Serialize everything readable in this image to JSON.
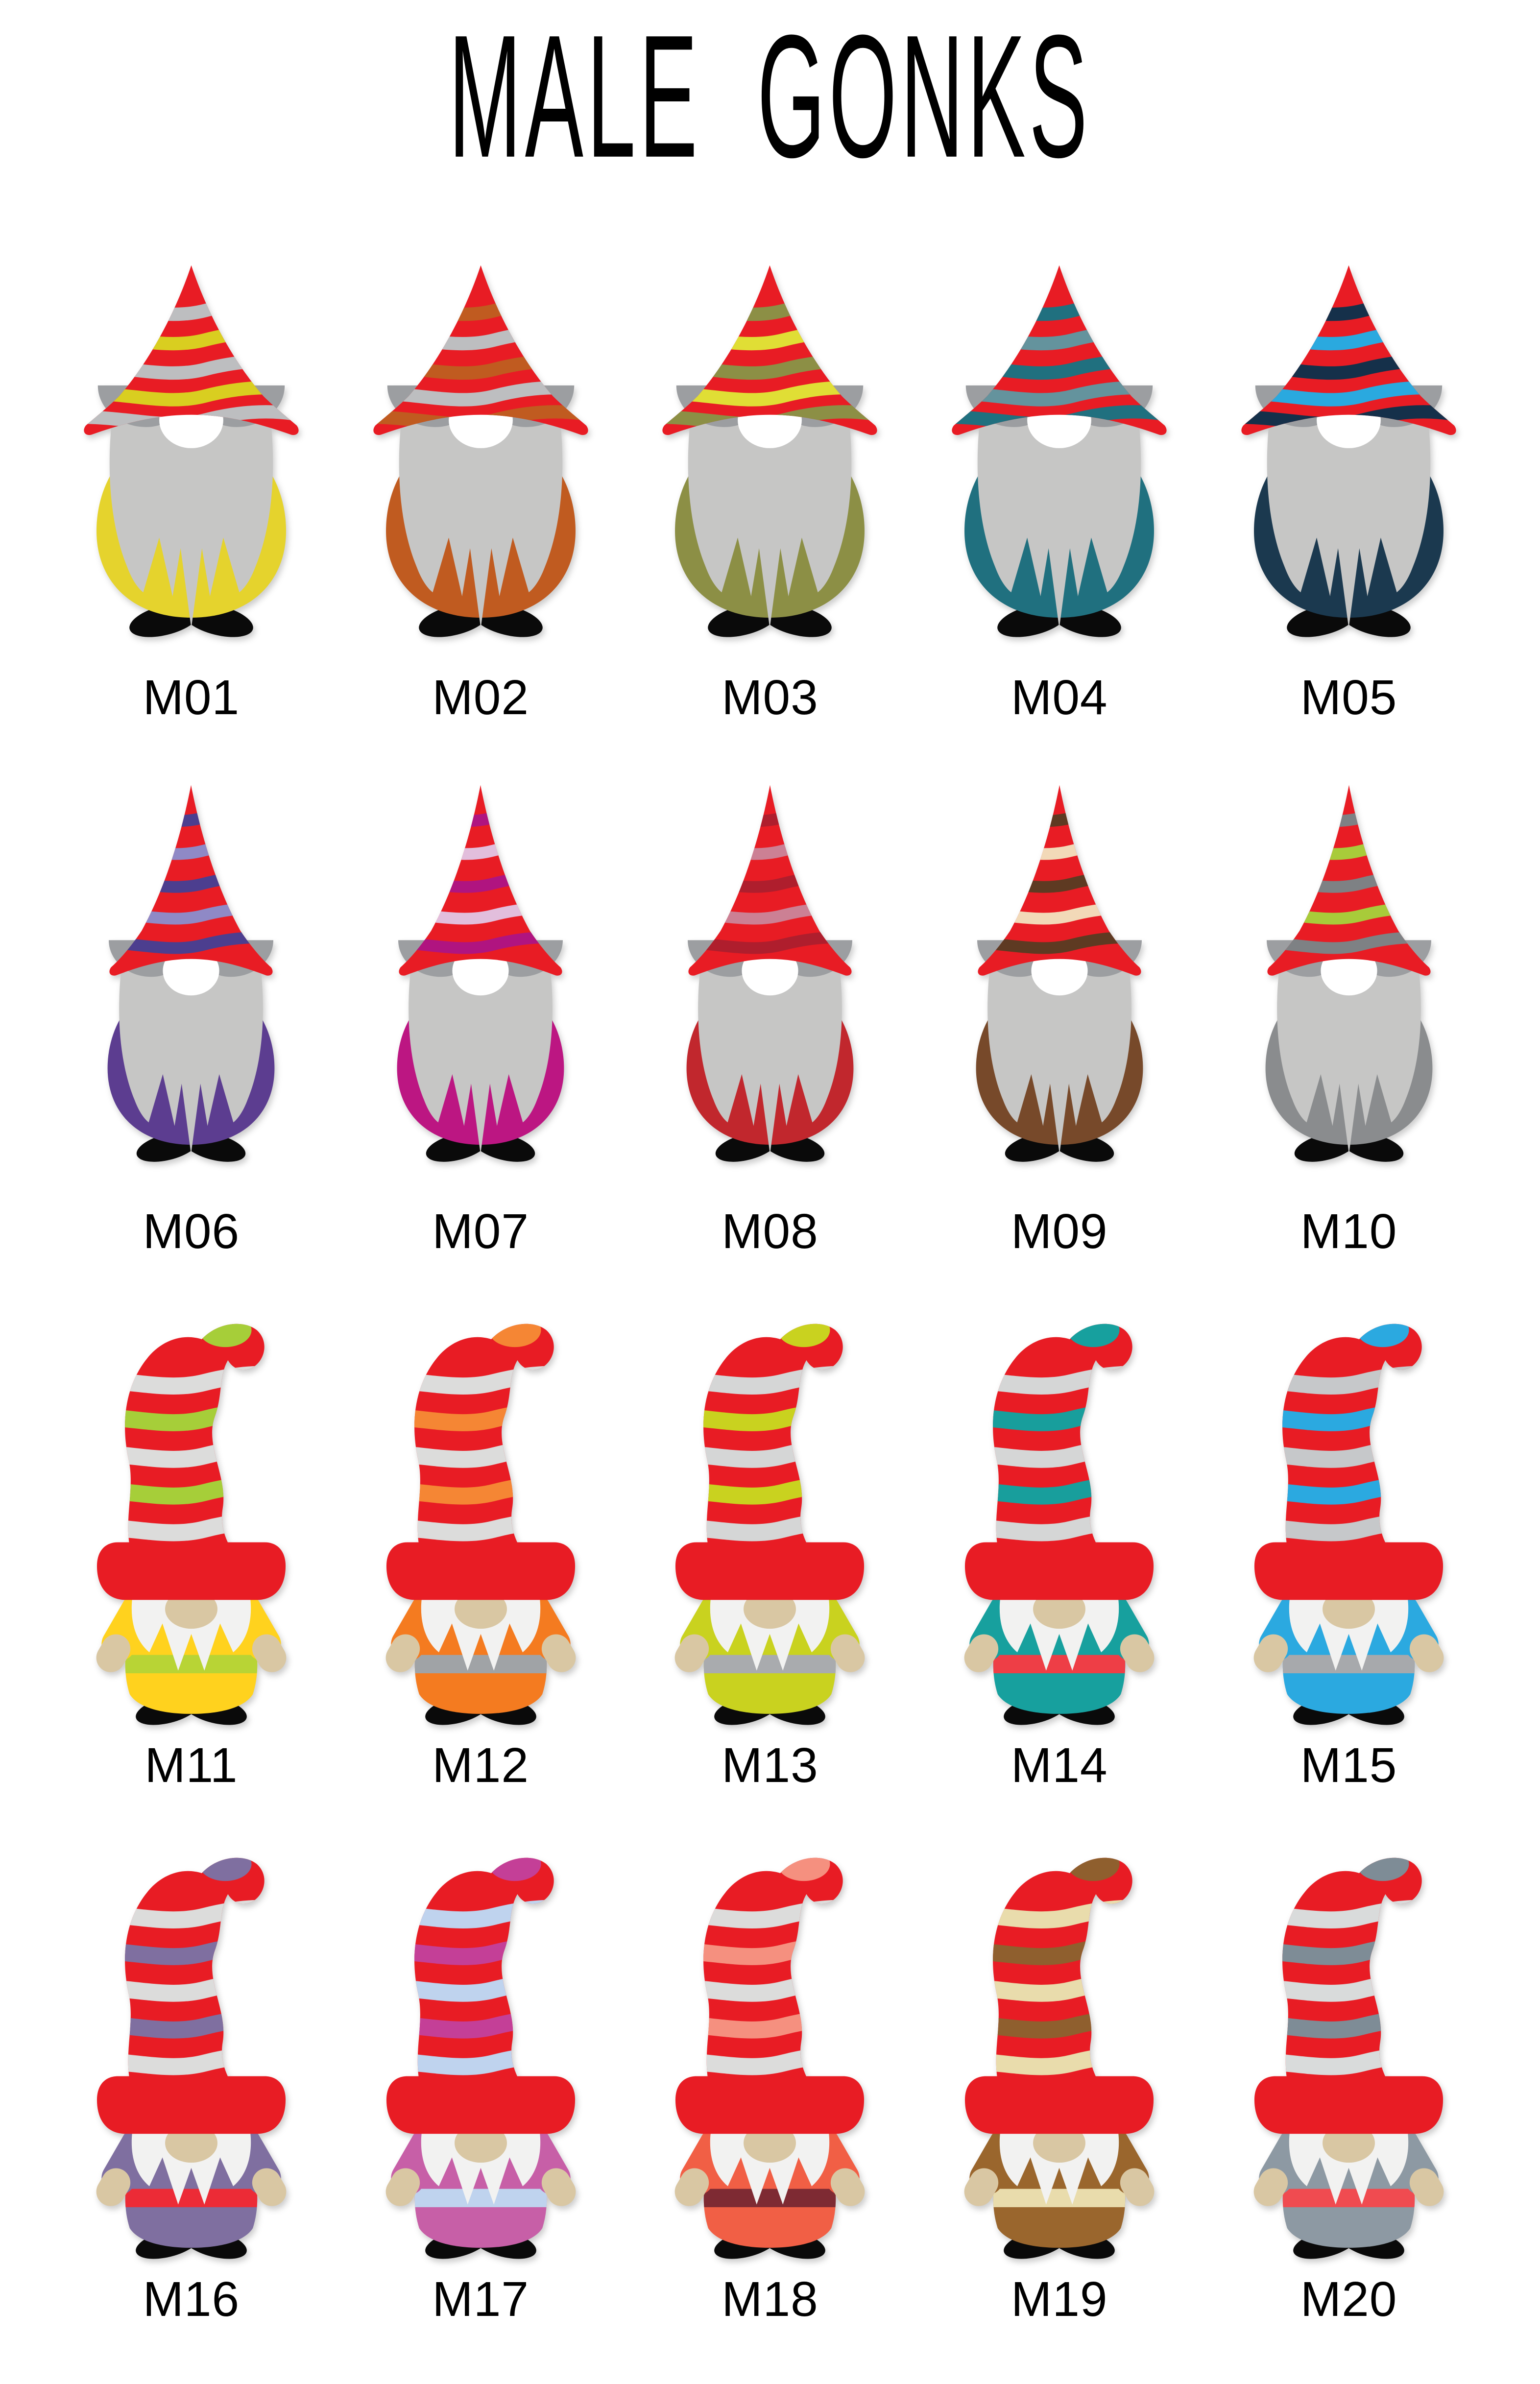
{
  "title": "MALE GONKS",
  "palette": {
    "hat_red": "#E81C24",
    "beard_gray": "#C6C6C5",
    "brow_gray": "#9C9EA1",
    "nose_white": "#FFFFFF",
    "beard_white": "#F2F2F1",
    "skin_tan": "#D9C7A3",
    "feet_black": "#0A0A0A",
    "text_color": "#000000"
  },
  "gonks": [
    {
      "id": "M01",
      "variant": "classic-wide",
      "accent": "#E5D32D",
      "stripes": [
        "#BDBEC0",
        "#D9CE20",
        "#BDBEC0",
        "#D9CE20",
        "#BDBEC0"
      ]
    },
    {
      "id": "M02",
      "variant": "classic-wide",
      "accent": "#C05B20",
      "stripes": [
        "#C05B20",
        "#BDBEC0",
        "#C05B20",
        "#BDBEC0",
        "#C05B20"
      ]
    },
    {
      "id": "M03",
      "variant": "classic-wide",
      "accent": "#8C8F45",
      "stripes": [
        "#8C8F45",
        "#E0DE35",
        "#8C8F45",
        "#E0DE35",
        "#8C8F45"
      ]
    },
    {
      "id": "M04",
      "variant": "classic-wide",
      "accent": "#20707F",
      "stripes": [
        "#20707F",
        "#64939D",
        "#20707F",
        "#64939D",
        "#20707F"
      ]
    },
    {
      "id": "M05",
      "variant": "classic-wide",
      "accent": "#1B394F",
      "stripes": [
        "#15304A",
        "#2AA9DF",
        "#15304A",
        "#2AA9DF",
        "#15304A"
      ]
    },
    {
      "id": "M06",
      "variant": "classic-tall",
      "accent": "#5C3D90",
      "stripes": [
        "#4C3E8F",
        "#8F89C6",
        "#4C3E8F",
        "#8F89C6",
        "#4C3E8F"
      ]
    },
    {
      "id": "M07",
      "variant": "classic-tall",
      "accent": "#BC1682",
      "stripes": [
        "#B01480",
        "#E2BEDC",
        "#B01480",
        "#E2BEDC",
        "#B01480"
      ]
    },
    {
      "id": "M08",
      "variant": "classic-tall",
      "accent": "#C1272D",
      "stripes": [
        "#AF1E2D",
        "#CC8094",
        "#AF1E2D",
        "#CC8094",
        "#AF1E2D"
      ]
    },
    {
      "id": "M09",
      "variant": "classic-tall",
      "accent": "#77492A",
      "stripes": [
        "#5E3A22",
        "#F2D9B8",
        "#5E3A22",
        "#F2D9B8",
        "#5E3A22"
      ]
    },
    {
      "id": "M10",
      "variant": "classic-tall",
      "accent": "#8A8C8E",
      "stripes": [
        "#7E8184",
        "#A8CB3A",
        "#7E8184",
        "#A8CB3A",
        "#7E8184"
      ]
    },
    {
      "id": "M11",
      "variant": "curvy",
      "body": "#FFD21E",
      "belt": "#B8D435",
      "tip": "#A6CE39",
      "stripes": [
        "#DCDCDB",
        "#A6CE39",
        "#DCDCDB",
        "#A6CE39",
        "#DCDCDB"
      ]
    },
    {
      "id": "M12",
      "variant": "curvy",
      "body": "#F47B20",
      "belt": "#A0A3A6",
      "tip": "#F58634",
      "stripes": [
        "#DCDCDB",
        "#F58634",
        "#DCDCDB",
        "#F58634",
        "#DCDCDB"
      ]
    },
    {
      "id": "M13",
      "variant": "curvy",
      "body": "#C9D21F",
      "belt": "#A9ABAE",
      "tip": "#C9D21F",
      "stripes": [
        "#D5D6D6",
        "#C9D21F",
        "#D5D6D6",
        "#C9D21F",
        "#D5D6D6"
      ]
    },
    {
      "id": "M14",
      "variant": "curvy",
      "body": "#17A09E",
      "belt": "#EE3E46",
      "tip": "#17A09E",
      "stripes": [
        "#D5D6D6",
        "#189E9C",
        "#D5D6D6",
        "#189E9C",
        "#D5D6D6"
      ]
    },
    {
      "id": "M15",
      "variant": "curvy",
      "body": "#2BA9E0",
      "belt": "#A7A9AC",
      "tip": "#2BA9E0",
      "stripes": [
        "#C6C8CA",
        "#2BA9E0",
        "#C6C8CA",
        "#2BA9E0",
        "#C6C8CA"
      ]
    },
    {
      "id": "M16",
      "variant": "curvy",
      "body": "#7F6FA0",
      "belt": "#EC2B36",
      "tip": "#7F6FA0",
      "stripes": [
        "#DCDCDB",
        "#7F6FA0",
        "#DCDCDB",
        "#7F6FA0",
        "#DCDCDB"
      ]
    },
    {
      "id": "M17",
      "variant": "curvy",
      "body": "#C75FA7",
      "belt": "#BFD3EE",
      "tip": "#C43F97",
      "stripes": [
        "#BFD3EE",
        "#C43F97",
        "#BFD3EE",
        "#C43F97",
        "#BFD3EE"
      ]
    },
    {
      "id": "M18",
      "variant": "curvy",
      "body": "#F15F45",
      "belt": "#7E2A33",
      "tip": "#F5907F",
      "stripes": [
        "#DCDCDB",
        "#F5907F",
        "#DCDCDB",
        "#F5907F",
        "#DCDCDB"
      ]
    },
    {
      "id": "M19",
      "variant": "curvy",
      "body": "#9A662D",
      "belt": "#E9DCAC",
      "tip": "#8F5F2E",
      "stripes": [
        "#E9DCAC",
        "#8F5F2E",
        "#E9DCAC",
        "#8F5F2E",
        "#E9DCAC"
      ]
    },
    {
      "id": "M20",
      "variant": "curvy",
      "body": "#8D99A3",
      "belt": "#F04B50",
      "tip": "#7E8C96",
      "stripes": [
        "#D9DBDB",
        "#7E8C96",
        "#D9DBDB",
        "#7E8C96",
        "#D9DBDB"
      ]
    }
  ]
}
